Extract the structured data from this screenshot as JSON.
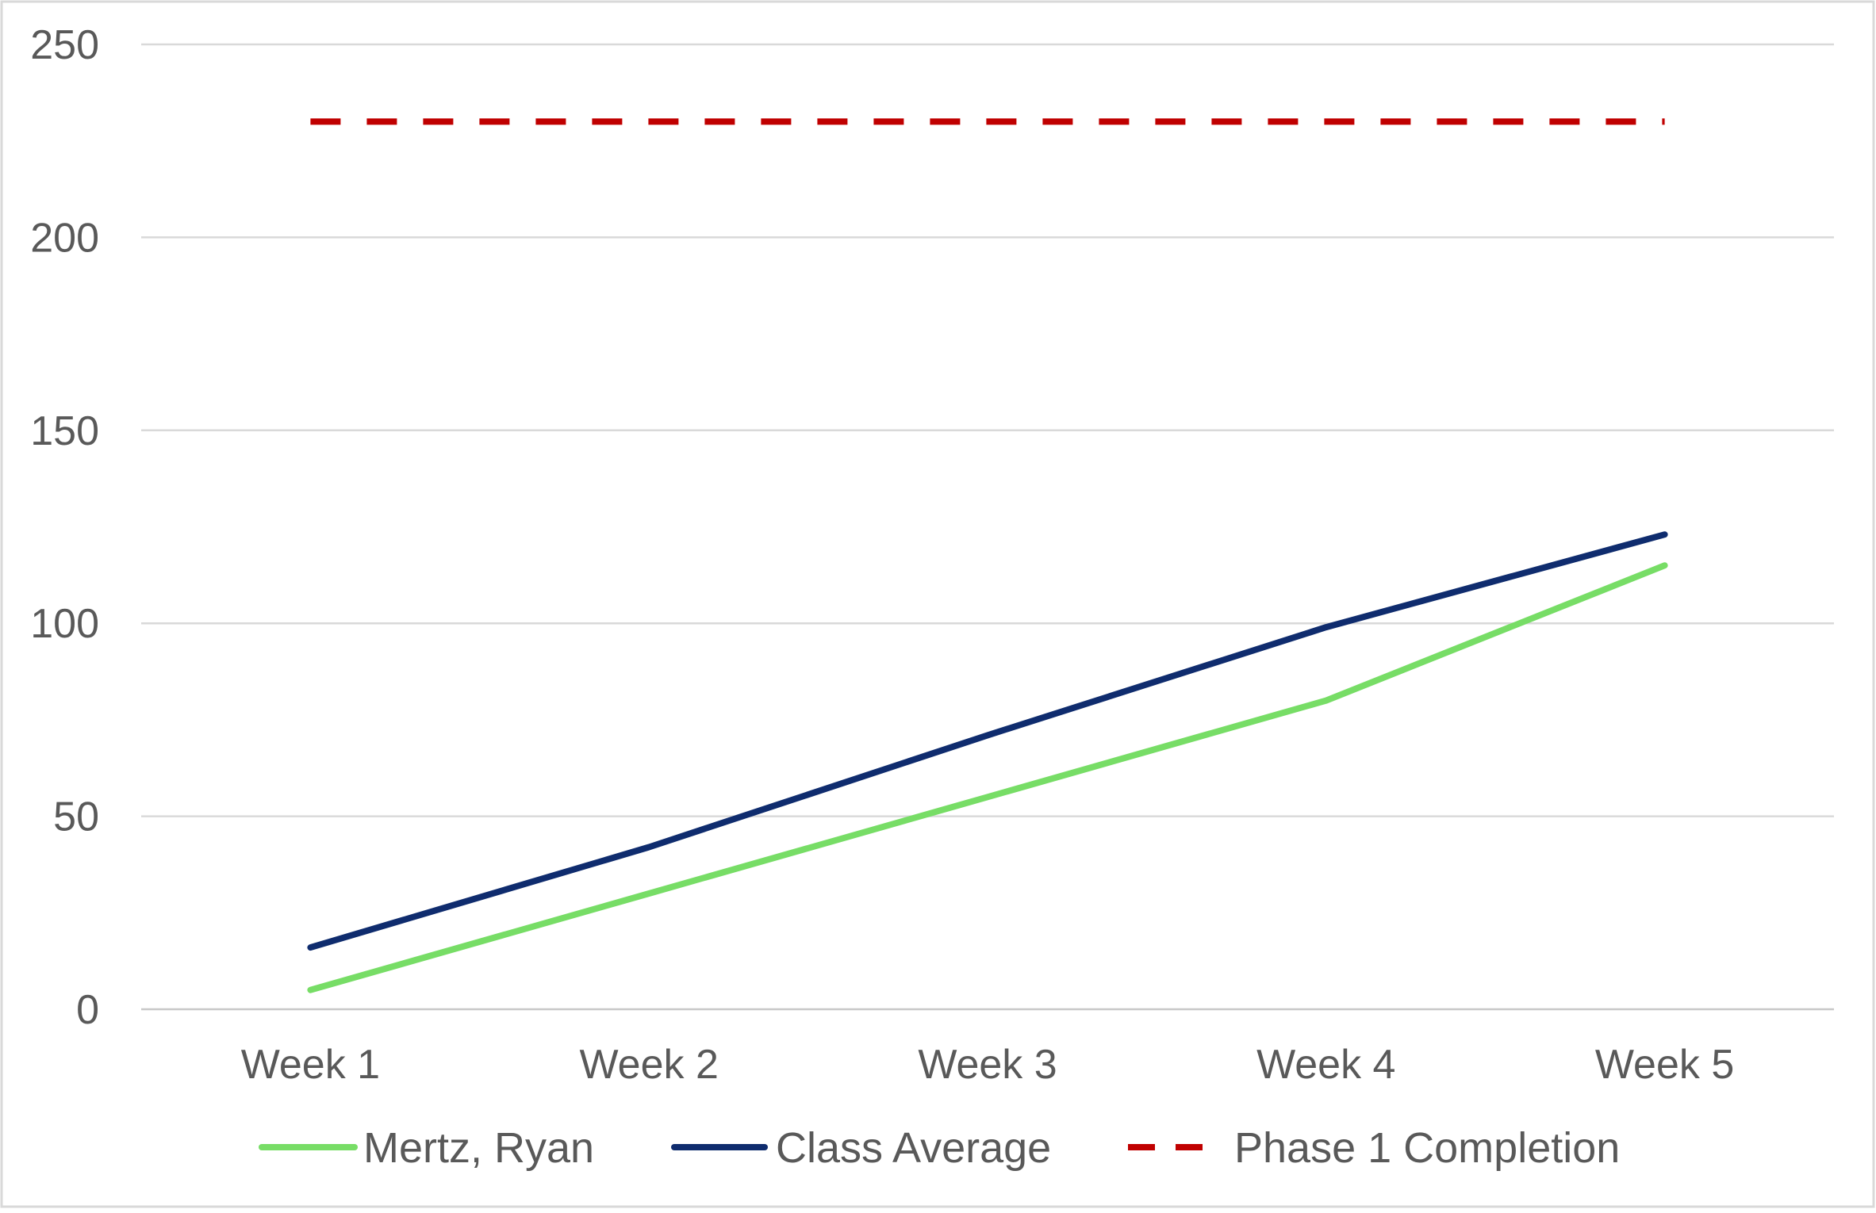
{
  "chart_data": {
    "type": "line",
    "title": "",
    "xlabel": "",
    "ylabel": "",
    "categories": [
      "Week 1",
      "Week 2",
      "Week 3",
      "Week 4",
      "Week 5"
    ],
    "ylim": [
      0,
      250
    ],
    "yticks": [
      0,
      50,
      100,
      150,
      200,
      250
    ],
    "grid": true,
    "legend_position": "bottom",
    "series": [
      {
        "name": "Mertz, Ryan",
        "values": [
          5,
          30,
          55,
          80,
          115
        ],
        "color": "#77DD66",
        "style": "solid"
      },
      {
        "name": "Class Average",
        "values": [
          16,
          42,
          71,
          99,
          123
        ],
        "color": "#0F2C6E",
        "style": "solid"
      },
      {
        "name": "Phase 1 Completion",
        "values": [
          230,
          230,
          230,
          230,
          230
        ],
        "color": "#C00000",
        "style": "dashed"
      }
    ]
  }
}
